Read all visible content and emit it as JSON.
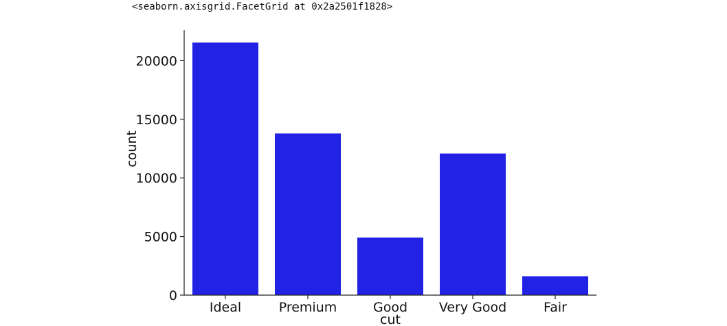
{
  "output": {
    "repr_text": "<seaborn.axisgrid.FacetGrid at 0x2a2501f1828>"
  },
  "chart_data": {
    "type": "bar",
    "categories": [
      "Ideal",
      "Premium",
      "Good",
      "Very Good",
      "Fair"
    ],
    "values": [
      21551,
      13791,
      4906,
      12082,
      1610
    ],
    "title": "",
    "xlabel": "cut",
    "ylabel": "count",
    "yticks": [
      0,
      5000,
      10000,
      15000,
      20000
    ],
    "ylim": [
      0,
      22600
    ],
    "bar_color": "#2222e4",
    "grid": false,
    "legend": "none"
  }
}
